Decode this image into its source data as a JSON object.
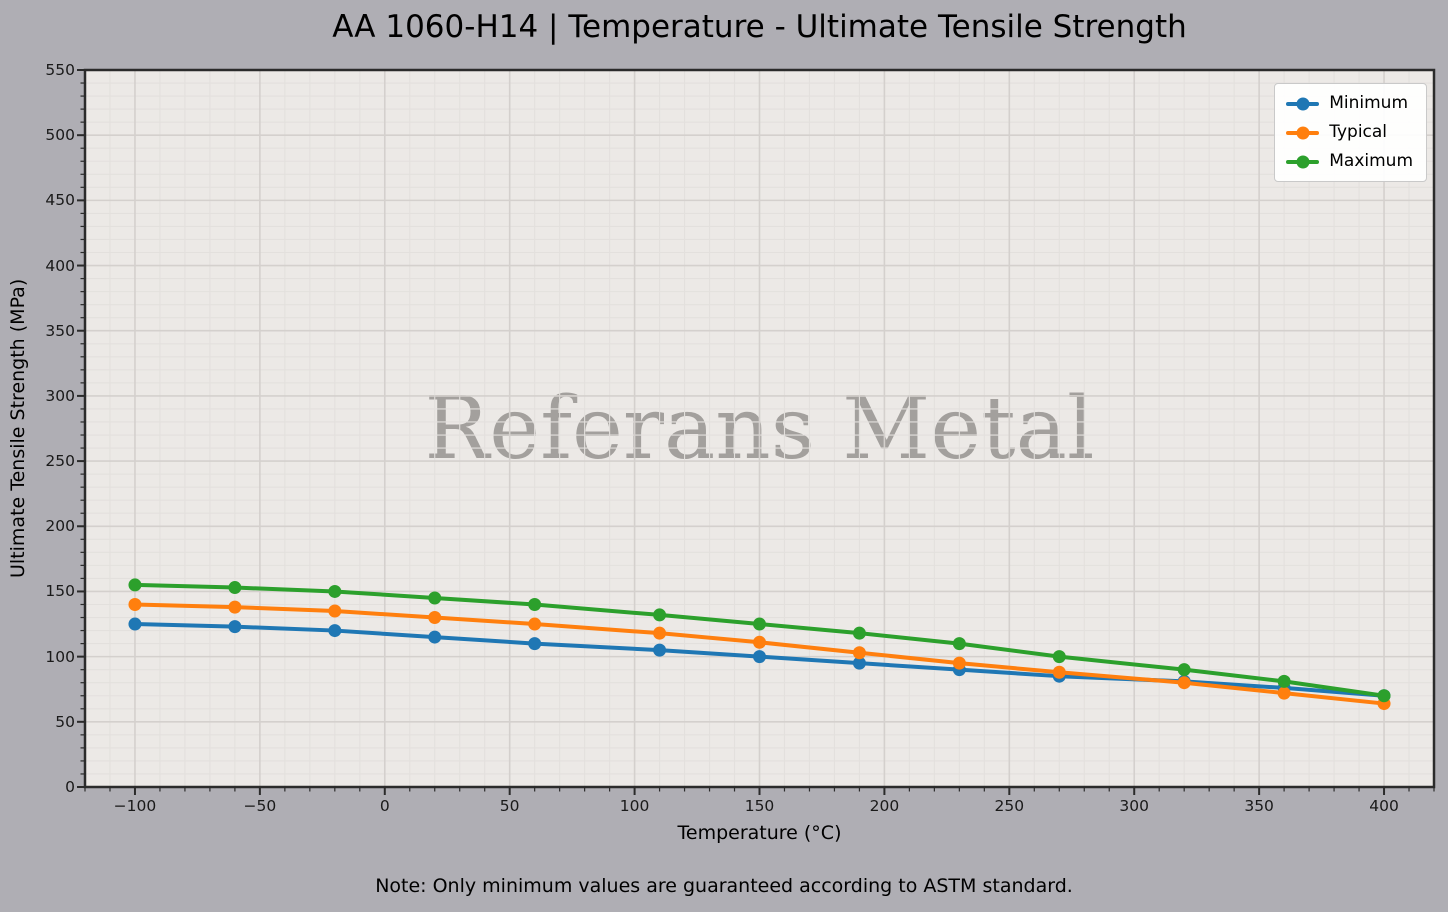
{
  "figure": {
    "background_color": "#afaeb4",
    "plot_background_color": "#ece9e6",
    "watermark": "Referans Metal",
    "note": "Note: Only minimum values are guaranteed according to ASTM standard."
  },
  "chart_data": {
    "type": "line",
    "title": "AA 1060-H14 | Temperature - Ultimate Tensile Strength",
    "xlabel": "Temperature (°C)",
    "ylabel": "Ultimate Tensile Strength (MPa)",
    "xlim": [
      -120,
      420
    ],
    "ylim": [
      0,
      550
    ],
    "grid": true,
    "legend_position": "upper right",
    "x": [
      -100,
      -60,
      -20,
      20,
      60,
      110,
      150,
      190,
      230,
      270,
      320,
      360,
      400
    ],
    "series": [
      {
        "name": "Minimum",
        "color": "#1f77b4",
        "values": [
          125,
          123,
          120,
          115,
          110,
          105,
          100,
          95,
          90,
          85,
          81,
          76,
          70
        ]
      },
      {
        "name": "Typical",
        "color": "#ff7f0e",
        "values": [
          140,
          138,
          135,
          130,
          125,
          118,
          111,
          103,
          95,
          88,
          80,
          72,
          64
        ]
      },
      {
        "name": "Maximum",
        "color": "#2ca02c",
        "values": [
          155,
          153,
          150,
          145,
          140,
          132,
          125,
          118,
          110,
          100,
          90,
          81,
          70
        ]
      }
    ],
    "xticks": [
      -100,
      -50,
      0,
      50,
      100,
      150,
      200,
      250,
      300,
      350,
      400
    ],
    "yticks": [
      0,
      50,
      100,
      150,
      200,
      250,
      300,
      350,
      400,
      450,
      500,
      550
    ],
    "minor_tick_step_x": 10,
    "minor_tick_step_y": 10,
    "grid_minor_color": "#e3e0dd",
    "grid_major_color": "#d4d0cd",
    "axis_color": "#2b2b2b"
  }
}
